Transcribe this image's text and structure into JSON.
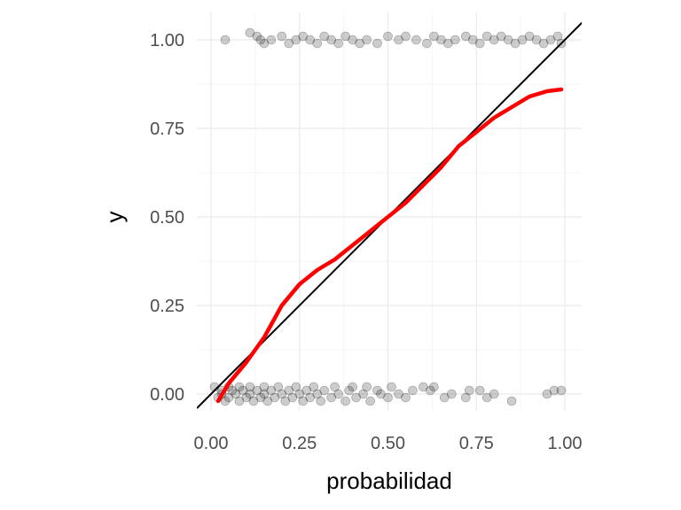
{
  "chart_data": {
    "type": "scatter",
    "title": "",
    "xlabel": "probabilidad",
    "ylabel": "y",
    "xlim": [
      -0.04,
      1.05
    ],
    "ylim": [
      -0.05,
      1.06
    ],
    "grid": true,
    "x_ticks": [
      "0.00",
      "0.25",
      "0.50",
      "0.75",
      "1.00"
    ],
    "y_ticks": [
      "0.00",
      "0.25",
      "0.50",
      "0.75",
      "1.00"
    ],
    "reference_line": {
      "slope": 1,
      "intercept": 0,
      "color": "#000000"
    },
    "smooth": {
      "color": "#ff0000",
      "x": [
        0.02,
        0.05,
        0.1,
        0.15,
        0.2,
        0.25,
        0.3,
        0.35,
        0.4,
        0.45,
        0.5,
        0.55,
        0.6,
        0.65,
        0.7,
        0.75,
        0.8,
        0.85,
        0.9,
        0.95,
        0.99
      ],
      "y": [
        -0.02,
        0.03,
        0.09,
        0.16,
        0.25,
        0.31,
        0.35,
        0.38,
        0.42,
        0.46,
        0.5,
        0.54,
        0.59,
        0.64,
        0.7,
        0.74,
        0.78,
        0.81,
        0.84,
        0.855,
        0.86
      ]
    },
    "series": [
      {
        "values": [
          [
            0.01,
            0.02
          ],
          [
            0.02,
            -0.01
          ],
          [
            0.03,
            0.01
          ],
          [
            0.03,
            0.0
          ],
          [
            0.04,
            -0.02
          ],
          [
            0.05,
            0.02
          ],
          [
            0.05,
            -0.01
          ],
          [
            0.06,
            0.01
          ],
          [
            0.07,
            0.0
          ],
          [
            0.08,
            -0.02
          ],
          [
            0.08,
            0.02
          ],
          [
            0.09,
            0.01
          ],
          [
            0.1,
            -0.01
          ],
          [
            0.11,
            0.02
          ],
          [
            0.11,
            0.0
          ],
          [
            0.12,
            -0.02
          ],
          [
            0.13,
            0.01
          ],
          [
            0.14,
            -0.01
          ],
          [
            0.15,
            0.02
          ],
          [
            0.15,
            0.0
          ],
          [
            0.16,
            -0.02
          ],
          [
            0.17,
            0.01
          ],
          [
            0.18,
            -0.01
          ],
          [
            0.19,
            0.02
          ],
          [
            0.2,
            0.0
          ],
          [
            0.21,
            -0.02
          ],
          [
            0.22,
            0.01
          ],
          [
            0.23,
            -0.01
          ],
          [
            0.24,
            0.02
          ],
          [
            0.25,
            0.0
          ],
          [
            0.26,
            -0.02
          ],
          [
            0.27,
            0.01
          ],
          [
            0.28,
            -0.01
          ],
          [
            0.29,
            0.02
          ],
          [
            0.3,
            0.0
          ],
          [
            0.31,
            -0.02
          ],
          [
            0.32,
            0.01
          ],
          [
            0.34,
            -0.01
          ],
          [
            0.35,
            0.02
          ],
          [
            0.36,
            0.0
          ],
          [
            0.38,
            -0.02
          ],
          [
            0.39,
            0.01
          ],
          [
            0.4,
            0.02
          ],
          [
            0.41,
            -0.01
          ],
          [
            0.43,
            0.0
          ],
          [
            0.44,
            0.02
          ],
          [
            0.45,
            -0.02
          ],
          [
            0.47,
            0.01
          ],
          [
            0.48,
            0.0
          ],
          [
            0.5,
            -0.01
          ],
          [
            0.51,
            0.02
          ],
          [
            0.53,
            0.0
          ],
          [
            0.55,
            -0.01
          ],
          [
            0.57,
            0.01
          ],
          [
            0.6,
            0.02
          ],
          [
            0.62,
            0.01
          ],
          [
            0.63,
            0.02
          ],
          [
            0.66,
            -0.01
          ],
          [
            0.68,
            0.0
          ],
          [
            0.72,
            -0.01
          ],
          [
            0.73,
            0.01
          ],
          [
            0.76,
            0.01
          ],
          [
            0.78,
            -0.01
          ],
          [
            0.8,
            0.0
          ],
          [
            0.85,
            -0.02
          ],
          [
            0.95,
            0.0
          ],
          [
            0.97,
            0.01
          ],
          [
            0.99,
            0.01
          ]
        ]
      },
      {
        "values": [
          [
            0.04,
            1.0
          ],
          [
            0.11,
            1.02
          ],
          [
            0.13,
            1.01
          ],
          [
            0.14,
            1.0
          ],
          [
            0.15,
            0.99
          ],
          [
            0.17,
            1.0
          ],
          [
            0.2,
            1.01
          ],
          [
            0.22,
            0.99
          ],
          [
            0.24,
            1.0
          ],
          [
            0.26,
            1.01
          ],
          [
            0.28,
            1.0
          ],
          [
            0.3,
            0.99
          ],
          [
            0.32,
            1.01
          ],
          [
            0.34,
            1.0
          ],
          [
            0.36,
            0.99
          ],
          [
            0.38,
            1.01
          ],
          [
            0.4,
            1.0
          ],
          [
            0.42,
            0.99
          ],
          [
            0.44,
            1.0
          ],
          [
            0.47,
            0.99
          ],
          [
            0.5,
            1.01
          ],
          [
            0.53,
            1.0
          ],
          [
            0.55,
            1.01
          ],
          [
            0.58,
            1.0
          ],
          [
            0.61,
            0.99
          ],
          [
            0.63,
            1.01
          ],
          [
            0.65,
            1.0
          ],
          [
            0.67,
            0.99
          ],
          [
            0.69,
            1.0
          ],
          [
            0.72,
            1.01
          ],
          [
            0.74,
            1.0
          ],
          [
            0.76,
            0.99
          ],
          [
            0.78,
            1.01
          ],
          [
            0.8,
            1.0
          ],
          [
            0.82,
            1.01
          ],
          [
            0.84,
            1.0
          ],
          [
            0.86,
            0.99
          ],
          [
            0.88,
            1.0
          ],
          [
            0.9,
            1.01
          ],
          [
            0.92,
            1.0
          ],
          [
            0.94,
            0.99
          ],
          [
            0.96,
            1.0
          ],
          [
            0.98,
            1.01
          ],
          [
            0.99,
            0.99
          ]
        ]
      }
    ]
  }
}
